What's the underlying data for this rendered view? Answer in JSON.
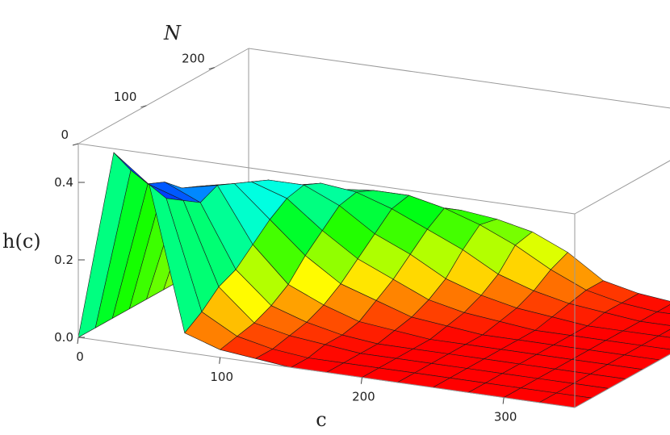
{
  "chart_data": {
    "type": "surface3d",
    "title": "",
    "xlabel": "c",
    "ylabel": "N",
    "zlabel": "h(c)",
    "x_ticks": [
      "0",
      "100",
      "200",
      "300"
    ],
    "y_ticks": [
      "0",
      "100",
      "200"
    ],
    "z_ticks": [
      "0.0",
      "0.2",
      "0.4"
    ],
    "x_range": [
      0,
      350
    ],
    "y_range": [
      0,
      250
    ],
    "z_range": [
      0,
      0.5
    ],
    "colormap": "rainbow (blue = high, red = low)",
    "grid_c": [
      0,
      25,
      50,
      75,
      100,
      125,
      150,
      175,
      200,
      225,
      250,
      275,
      300,
      325,
      350
    ],
    "grid_N": [
      0,
      25,
      50,
      75,
      100,
      125,
      150,
      175,
      200,
      225,
      250
    ],
    "h_values": [
      [
        0.0,
        0.49,
        0.42,
        0.05,
        0.02,
        0.01,
        0.0,
        0.0,
        0.0,
        0.0,
        0.0,
        0.0,
        0.0,
        0.0,
        0.0
      ],
      [
        0.0,
        0.42,
        0.36,
        0.08,
        0.03,
        0.01,
        0.0,
        0.0,
        0.0,
        0.0,
        0.0,
        0.0,
        0.0,
        0.0,
        0.0
      ],
      [
        0.0,
        0.36,
        0.33,
        0.12,
        0.04,
        0.02,
        0.01,
        0.0,
        0.0,
        0.0,
        0.0,
        0.0,
        0.0,
        0.0,
        0.0
      ],
      [
        0.0,
        0.34,
        0.3,
        0.14,
        0.06,
        0.03,
        0.01,
        0.0,
        0.0,
        0.0,
        0.0,
        0.0,
        0.0,
        0.0,
        0.0
      ],
      [
        0.0,
        0.3,
        0.32,
        0.18,
        0.09,
        0.05,
        0.02,
        0.01,
        0.0,
        0.0,
        0.0,
        0.0,
        0.0,
        0.0,
        0.0
      ],
      [
        0.0,
        0.28,
        0.3,
        0.22,
        0.14,
        0.08,
        0.05,
        0.02,
        0.01,
        0.0,
        0.0,
        0.0,
        0.0,
        0.0,
        0.0
      ],
      [
        0.0,
        0.24,
        0.28,
        0.25,
        0.18,
        0.12,
        0.08,
        0.04,
        0.02,
        0.01,
        0.0,
        0.0,
        0.0,
        0.0,
        0.0
      ],
      [
        0.01,
        0.2,
        0.26,
        0.26,
        0.22,
        0.16,
        0.12,
        0.07,
        0.04,
        0.02,
        0.01,
        0.0,
        0.0,
        0.0,
        0.0
      ],
      [
        0.02,
        0.16,
        0.22,
        0.24,
        0.23,
        0.2,
        0.16,
        0.12,
        0.07,
        0.04,
        0.02,
        0.01,
        0.0,
        0.0,
        0.0
      ],
      [
        0.03,
        0.13,
        0.18,
        0.2,
        0.21,
        0.21,
        0.19,
        0.16,
        0.12,
        0.07,
        0.03,
        0.01,
        0.0,
        0.0,
        0.0
      ],
      [
        0.05,
        0.11,
        0.13,
        0.14,
        0.15,
        0.16,
        0.16,
        0.15,
        0.13,
        0.09,
        0.03,
        0.01,
        0.0,
        0.0,
        0.0
      ]
    ]
  }
}
